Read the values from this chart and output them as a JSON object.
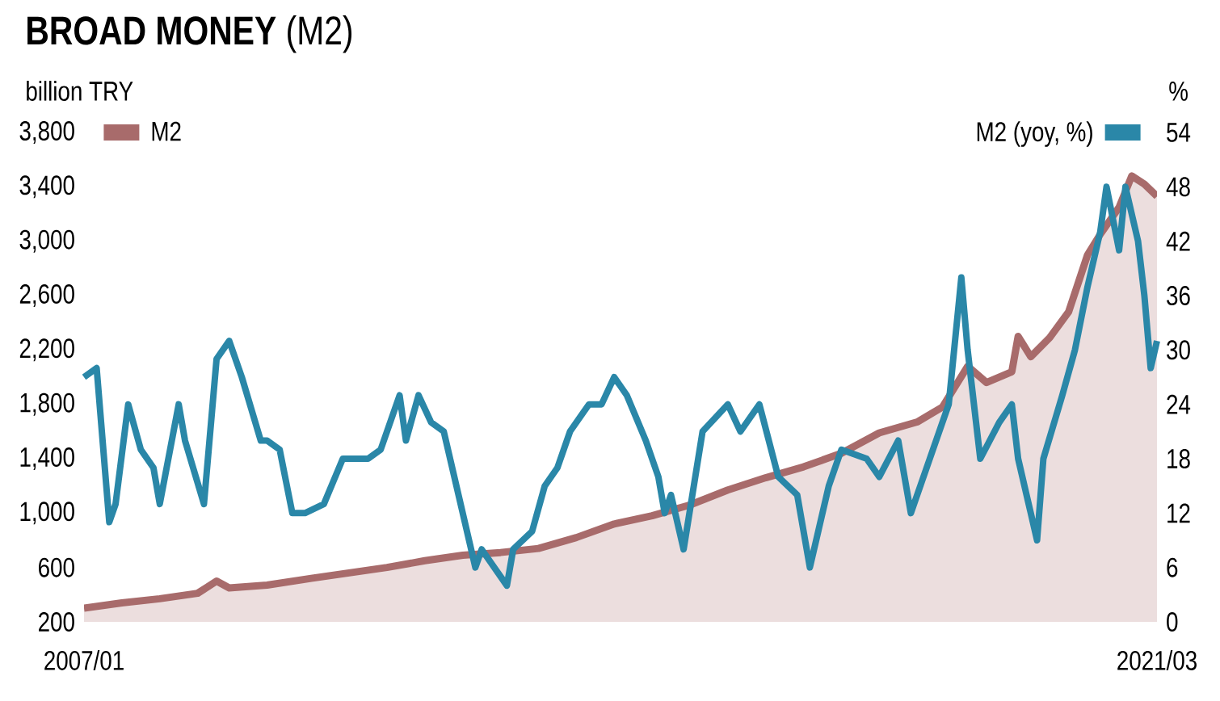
{
  "chart_data": {
    "type": "line",
    "title": "**BROAD MONEY** (M2)",
    "ylabel": "billion TRY",
    "y2label": "%",
    "legend": "top",
    "xlim": [
      "2007-01",
      "2021-03"
    ],
    "xticks": [
      {
        "value": "2007-01",
        "label": "2007/01"
      },
      {
        "value": "2021-03",
        "label": "2021/03"
      }
    ],
    "ylim": [
      200,
      3800
    ],
    "yticks": [
      200,
      600,
      {
        "value": 1000,
        "label": "1,000"
      },
      {
        "value": 1400,
        "label": "1,400"
      },
      {
        "value": 1800,
        "label": "1,800"
      },
      {
        "value": 2200,
        "label": "2,200"
      },
      {
        "value": 2600,
        "label": "2,600"
      },
      {
        "value": 3000,
        "label": "3,000"
      },
      {
        "value": 3400,
        "label": "3,400"
      },
      {
        "value": 3800,
        "label": "3,800"
      }
    ],
    "y2lim": [
      0,
      54
    ],
    "y2ticks": [
      0,
      6,
      12,
      18,
      24,
      30,
      36,
      42,
      48,
      54
    ],
    "series": [
      {
        "name": "M2",
        "type": "area",
        "color": "#a86b6b",
        "x": [
          "2007-01",
          "2007-07",
          "2008-01",
          "2008-07",
          "2008-10",
          "2008-12",
          "2009-06",
          "2010-01",
          "2010-07",
          "2011-01",
          "2011-07",
          "2012-01",
          "2012-07",
          "2013-01",
          "2013-07",
          "2014-01",
          "2014-07",
          "2015-01",
          "2015-07",
          "2016-01",
          "2016-07",
          "2017-01",
          "2017-07",
          "2018-01",
          "2018-05",
          "2018-09",
          "2018-12",
          "2019-04",
          "2019-05",
          "2019-07",
          "2019-10",
          "2020-01",
          "2020-04",
          "2020-06",
          "2020-09",
          "2020-11",
          "2021-01",
          "2021-03"
        ],
        "values": [
          300,
          340,
          370,
          410,
          500,
          450,
          470,
          520,
          560,
          600,
          650,
          690,
          710,
          740,
          820,
          920,
          980,
          1060,
          1170,
          1260,
          1340,
          1440,
          1590,
          1670,
          1780,
          2080,
          1960,
          2040,
          2300,
          2150,
          2290,
          2480,
          2900,
          3050,
          3250,
          3480,
          3420,
          3330
        ]
      },
      {
        "name": "M2 (yoy, %)",
        "color": "#2a87a8",
        "axis": "y2",
        "x": [
          "2007-01",
          "2007-03",
          "2007-05",
          "2007-06",
          "2007-08",
          "2007-10",
          "2007-12",
          "2008-01",
          "2008-04",
          "2008-05",
          "2008-08",
          "2008-10",
          "2008-12",
          "2009-02",
          "2009-05",
          "2009-06",
          "2009-08",
          "2009-10",
          "2009-12",
          "2010-03",
          "2010-06",
          "2010-10",
          "2010-12",
          "2011-03",
          "2011-04",
          "2011-06",
          "2011-08",
          "2011-10",
          "2011-12",
          "2012-03",
          "2012-04",
          "2012-08",
          "2012-09",
          "2012-12",
          "2013-02",
          "2013-04",
          "2013-06",
          "2013-09",
          "2013-11",
          "2014-01",
          "2014-03",
          "2014-06",
          "2014-08",
          "2014-09",
          "2014-10",
          "2014-12",
          "2015-03",
          "2015-07",
          "2015-09",
          "2015-12",
          "2016-03",
          "2016-06",
          "2016-08",
          "2016-11",
          "2017-01",
          "2017-05",
          "2017-07",
          "2017-10",
          "2017-12",
          "2018-03",
          "2018-06",
          "2018-08",
          "2018-09",
          "2018-11",
          "2019-02",
          "2019-04",
          "2019-05",
          "2019-08",
          "2019-09",
          "2019-12",
          "2020-02",
          "2020-04",
          "2020-06",
          "2020-07",
          "2020-09",
          "2020-10",
          "2020-12",
          "2021-01",
          "2021-02",
          "2021-03"
        ],
        "values": [
          27,
          28,
          11,
          13,
          24,
          19,
          17,
          13,
          24,
          20,
          13,
          29,
          31,
          27,
          20,
          20,
          19,
          12,
          12,
          13,
          18,
          18,
          19,
          25,
          20,
          25,
          22,
          21,
          15,
          6,
          8,
          4,
          8,
          10,
          15,
          17,
          21,
          24,
          24,
          27,
          25,
          20,
          16,
          12,
          14,
          8,
          21,
          24,
          21,
          24,
          16,
          14,
          6,
          15,
          19,
          18,
          16,
          20,
          12,
          18,
          24,
          38,
          30,
          18,
          22,
          24,
          18,
          9,
          18,
          25,
          30,
          37,
          43,
          48,
          41,
          48,
          42,
          36,
          28,
          31
        ]
      }
    ]
  }
}
